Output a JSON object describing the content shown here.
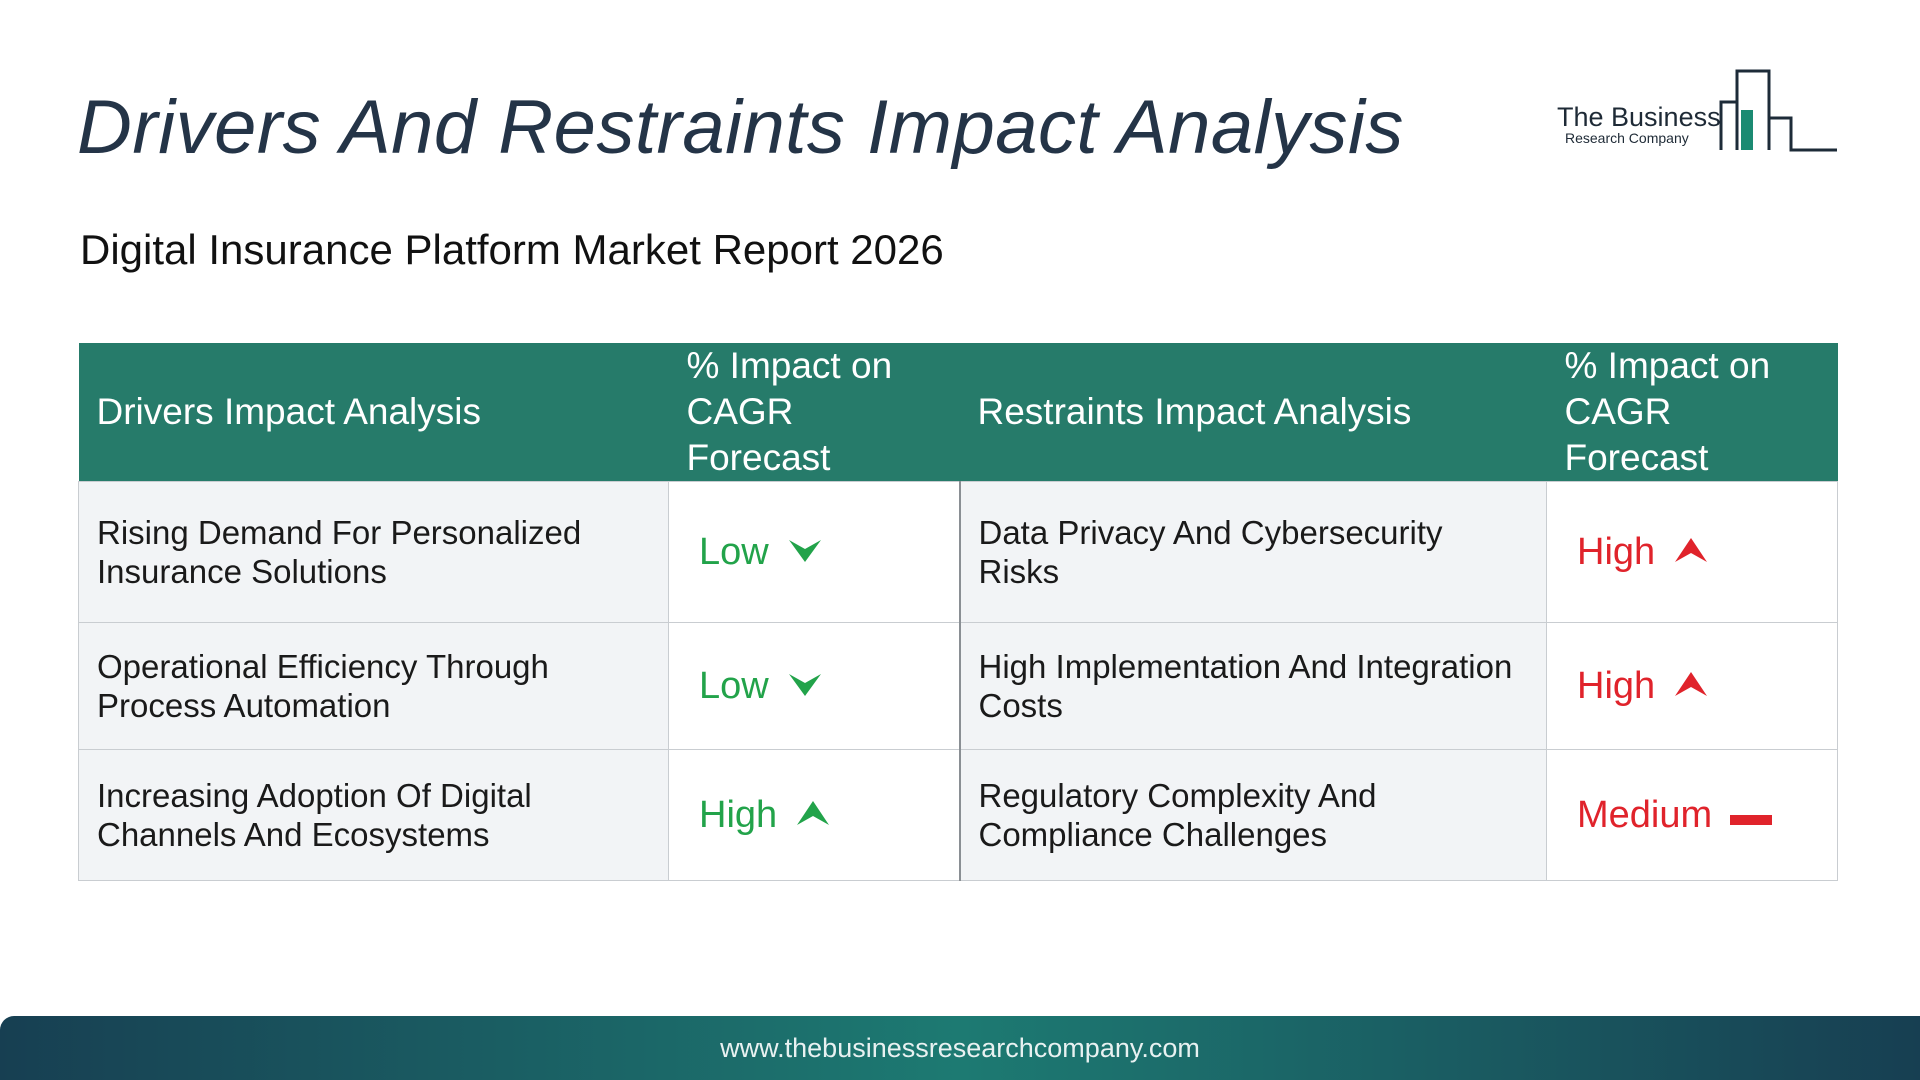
{
  "header": {
    "title": "Drivers And Restraints Impact Analysis",
    "subtitle": "Digital Insurance Platform Market Report 2026"
  },
  "logo": {
    "line1": "The Business",
    "line2": "Research Company",
    "icon": "bar-chart-buildings-icon",
    "color": "#1b8a72"
  },
  "table": {
    "headers": {
      "drivers": "Drivers Impact Analysis",
      "drivers_impact": "% Impact on CAGR Forecast",
      "restraints": "Restraints Impact Analysis",
      "restraints_impact": "% Impact on CAGR Forecast"
    },
    "rows": [
      {
        "driver": "Rising Demand For Personalized Insurance Solutions",
        "driver_impact": "Low",
        "driver_icon": "chevron-down-icon",
        "restraint": "Data Privacy And Cybersecurity Risks",
        "restraint_impact": "High",
        "restraint_icon": "arrow-up-icon"
      },
      {
        "driver": "Operational Efficiency Through Process Automation",
        "driver_impact": "Low",
        "driver_icon": "chevron-down-icon",
        "restraint": "High Implementation And Integration Costs",
        "restraint_impact": "High",
        "restraint_icon": "arrow-up-icon"
      },
      {
        "driver": "Increasing Adoption Of Digital Channels And Ecosystems",
        "driver_impact": "High",
        "driver_icon": "arrow-up-icon",
        "restraint": "Regulatory Complexity And Compliance Challenges",
        "restraint_impact": "Medium",
        "restraint_icon": "dash-icon"
      }
    ]
  },
  "colors": {
    "header_bg": "#267b6a",
    "driver_level": "#22a34a",
    "restraint_level": "#e0232b",
    "title": "#243447"
  },
  "footer": {
    "url": "www.thebusinessresearchcompany.com"
  }
}
